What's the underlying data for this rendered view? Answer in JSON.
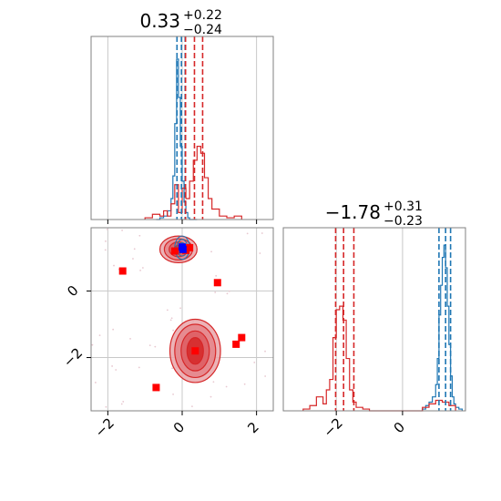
{
  "chart_data": {
    "type": "corner",
    "parameters": 2,
    "colors": {
      "blue": "#1f77b4",
      "red": "#d62728",
      "marker_red": "#ff0000",
      "marker_blue": "#0000ff",
      "grid": "#c8c8c8"
    },
    "grid": true,
    "panels": [
      {
        "id": "hist-param-1",
        "type": "histogram",
        "title_value": "0.33",
        "title_plus": "+0.22",
        "title_minus": "−0.24",
        "xlim": [
          -2.45,
          2.45
        ],
        "ylim": [
          0,
          1.05
        ],
        "xticks": [
          -2,
          0,
          2
        ],
        "quantiles": {
          "blue": [
            -0.14,
            -0.02,
            0.08
          ],
          "red": [
            0.09,
            0.33,
            0.55
          ]
        },
        "series": [
          {
            "name": "",
            "color": "#1f77b4",
            "bin_edges": [
              -0.7,
              -0.6,
              -0.5,
              -0.4,
              -0.3,
              -0.25,
              -0.2,
              -0.15,
              -0.1,
              -0.05,
              0.0,
              0.05,
              0.1,
              0.15,
              0.2,
              0.3,
              0.4
            ],
            "counts": [
              0,
              0.01,
              0.02,
              0.05,
              0.12,
              0.25,
              0.55,
              0.92,
              0.7,
              0.42,
              0.22,
              0.1,
              0.04,
              0.01,
              0,
              0
            ]
          },
          {
            "name": "",
            "color": "#d62728",
            "bin_edges": [
              -1.0,
              -0.8,
              -0.6,
              -0.5,
              -0.4,
              -0.3,
              -0.2,
              -0.1,
              0.0,
              0.1,
              0.2,
              0.3,
              0.4,
              0.5,
              0.6,
              0.7,
              0.8,
              1.0,
              1.2,
              1.4,
              1.6
            ],
            "counts": [
              0.01,
              0.03,
              0.02,
              0.05,
              0.02,
              0.09,
              0.2,
              0.04,
              0.18,
              0.12,
              0.22,
              0.34,
              0.42,
              0.38,
              0.24,
              0.12,
              0.06,
              0.02,
              0.01,
              0.02
            ]
          }
        ]
      },
      {
        "id": "scatter-2d",
        "type": "contour",
        "xlim": [
          -2.45,
          2.45
        ],
        "ylim": [
          -3.6,
          1.9
        ],
        "xticks": [
          -2,
          0,
          2
        ],
        "yticks": [
          -2,
          0
        ],
        "red_modes": [
          {
            "x": 0.35,
            "y": -1.8,
            "rx": [
              0.22,
              0.38,
              0.55,
              0.68
            ],
            "ry": [
              0.4,
              0.6,
              0.8,
              0.95
            ]
          },
          {
            "x": -0.1,
            "y": 1.25,
            "rx": [
              0.12,
              0.25,
              0.38,
              0.5
            ],
            "ry": [
              0.12,
              0.22,
              0.32,
              0.4
            ]
          }
        ],
        "blue_mode": {
          "x": 0.0,
          "y": 1.3,
          "rx": [
            0.08,
            0.14,
            0.2
          ],
          "ry": [
            0.15,
            0.25,
            0.35
          ]
        },
        "red_markers": [
          [
            -1.6,
            0.6
          ],
          [
            0.95,
            0.25
          ],
          [
            0.1,
            1.22
          ],
          [
            -0.2,
            1.2
          ],
          [
            0.35,
            -1.8
          ],
          [
            1.45,
            -1.6
          ],
          [
            1.6,
            -1.4
          ],
          [
            -0.7,
            -2.9
          ],
          [
            0.2,
            1.3
          ]
        ],
        "blue_markers": [
          [
            0.0,
            1.32
          ],
          [
            0.02,
            1.25
          ]
        ]
      },
      {
        "id": "hist-param-2",
        "type": "histogram",
        "title_value": "−1.78",
        "title_plus": "+0.31",
        "title_minus": "−0.23",
        "xlim": [
          -3.6,
          1.9
        ],
        "ylim": [
          0,
          1.05
        ],
        "xticks": [
          -2,
          0
        ],
        "quantiles": {
          "blue": [
            1.1,
            1.3,
            1.45
          ],
          "red": [
            -2.02,
            -1.78,
            -1.47
          ]
        },
        "series": [
          {
            "name": "",
            "color": "#1f77b4",
            "bin_edges": [
              0.6,
              0.7,
              0.8,
              0.9,
              1.0,
              1.05,
              1.1,
              1.15,
              1.2,
              1.25,
              1.3,
              1.35,
              1.4,
              1.45,
              1.5,
              1.55,
              1.6,
              1.7,
              1.8
            ],
            "counts": [
              0.01,
              0.03,
              0.05,
              0.08,
              0.15,
              0.3,
              0.55,
              0.72,
              0.88,
              0.95,
              0.82,
              0.6,
              0.38,
              0.2,
              0.08,
              0.04,
              0.02,
              0.01
            ]
          },
          {
            "name": "",
            "color": "#d62728",
            "bin_edges": [
              -3.0,
              -2.8,
              -2.6,
              -2.4,
              -2.3,
              -2.2,
              -2.1,
              -2.0,
              -1.9,
              -1.8,
              -1.7,
              -1.6,
              -1.5,
              -1.4,
              -1.2,
              -1.0,
              0.6,
              0.8,
              1.0,
              1.2,
              1.4,
              1.6
            ],
            "counts": [
              0.01,
              0.03,
              0.08,
              0.04,
              0.12,
              0.18,
              0.42,
              0.58,
              0.6,
              0.52,
              0.3,
              0.12,
              0.05,
              0.02,
              0.01,
              0.0,
              0.02,
              0.04,
              0.06,
              0.05,
              0.03
            ]
          }
        ]
      }
    ]
  }
}
